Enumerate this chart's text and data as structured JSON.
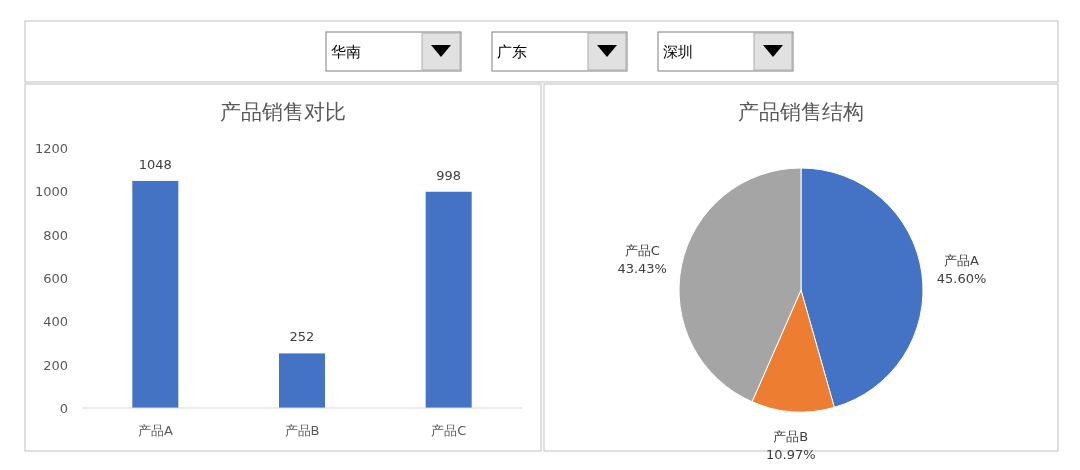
{
  "chart_data": [
    {
      "type": "other",
      "annotations": [
        "华南",
        "广东",
        "深圳"
      ]
    },
    {
      "type": "bar",
      "title": "产品销售对比",
      "categories": [
        "产品A",
        "产品B",
        "产品C"
      ],
      "values": [
        1048,
        252,
        998
      ],
      "color": "#4472c4",
      "ylim": [
        0,
        1200
      ],
      "yticks": [
        0,
        200,
        400,
        600,
        800,
        1000,
        1200
      ],
      "data_labels": true
    },
    {
      "type": "pie",
      "title": "产品销售结构",
      "categories": [
        "产品A",
        "产品B",
        "产品C"
      ],
      "values": [
        45.6,
        10.97,
        43.43
      ],
      "colors": [
        "#4472c4",
        "#ed7d31",
        "#a5a5a5"
      ],
      "value_labels": [
        "45.60%",
        "10.97%",
        "43.43%"
      ]
    }
  ]
}
